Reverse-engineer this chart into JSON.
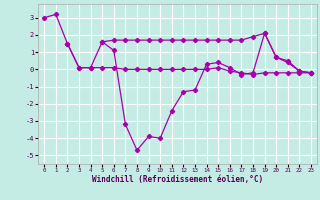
{
  "background_color": "#c5ece4",
  "grid_color": "#ffffff",
  "line_color": "#aa00aa",
  "xlim": [
    -0.5,
    23.5
  ],
  "ylim": [
    -5.5,
    3.8
  ],
  "yticks": [
    -5,
    -4,
    -3,
    -2,
    -1,
    0,
    1,
    2,
    3
  ],
  "xticks": [
    0,
    1,
    2,
    3,
    4,
    5,
    6,
    7,
    8,
    9,
    10,
    11,
    12,
    13,
    14,
    15,
    16,
    17,
    18,
    19,
    20,
    21,
    22,
    23
  ],
  "xlabel": "Windchill (Refroidissement éolien,°C)",
  "line1_x": [
    0,
    1,
    2,
    3,
    4,
    5,
    6,
    7,
    8,
    9,
    10,
    11,
    12,
    13,
    14,
    15,
    16,
    17,
    18,
    19,
    20,
    21,
    22,
    23
  ],
  "line1_y": [
    3.0,
    3.2,
    1.5,
    0.1,
    0.1,
    1.6,
    1.7,
    1.7,
    1.7,
    1.7,
    1.7,
    1.7,
    1.7,
    1.7,
    1.7,
    1.7,
    1.7,
    1.7,
    1.9,
    2.1,
    0.7,
    0.5,
    -0.1,
    -0.2
  ],
  "line2_x": [
    2,
    3,
    4,
    5,
    6,
    7,
    8,
    9,
    10,
    11,
    12,
    13,
    14,
    15,
    16,
    17,
    18,
    19,
    20,
    21,
    22,
    23
  ],
  "line2_y": [
    1.5,
    0.1,
    0.1,
    0.1,
    0.1,
    0.0,
    0.0,
    0.0,
    0.0,
    0.0,
    0.0,
    0.0,
    0.0,
    0.1,
    -0.1,
    -0.2,
    -0.3,
    -0.2,
    -0.2,
    -0.2,
    -0.2,
    -0.2
  ],
  "line3_x": [
    5,
    6,
    7,
    8,
    9,
    10,
    11,
    12,
    13,
    14,
    15,
    16,
    17,
    18,
    19,
    20,
    21,
    22,
    23
  ],
  "line3_y": [
    1.6,
    1.1,
    -3.2,
    -4.7,
    -3.9,
    -4.0,
    -2.4,
    -1.3,
    -1.2,
    0.3,
    0.4,
    0.1,
    -0.3,
    -0.2,
    2.1,
    0.7,
    0.4,
    -0.1,
    -0.2
  ]
}
